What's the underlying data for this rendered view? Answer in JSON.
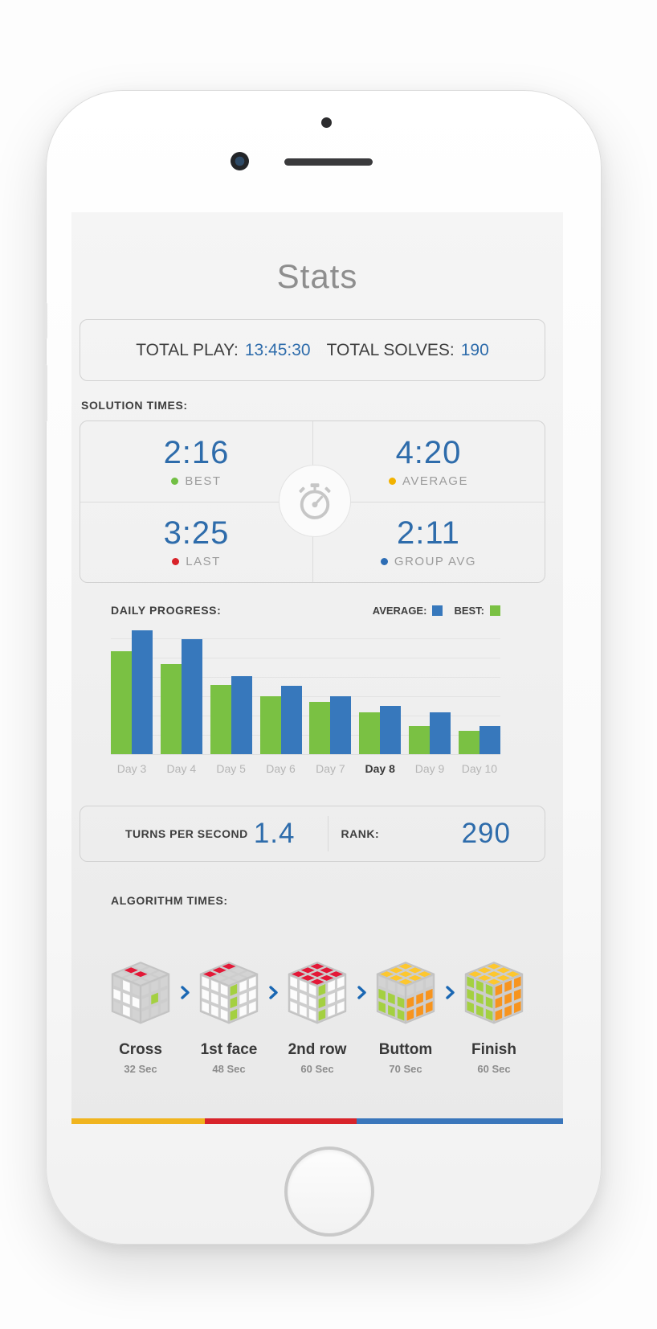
{
  "header": {
    "title": "Stats"
  },
  "totals": {
    "play_label": "TOTAL PLAY:",
    "play_value": "13:45:30",
    "solves_label": "TOTAL SOLVES:",
    "solves_value": "190"
  },
  "solution_times": {
    "section_label": "SOLUTION TIMES:",
    "center_icon": "stopwatch-icon",
    "cells": [
      {
        "value": "2:16",
        "label": "BEST",
        "dot_color": "#72bf44"
      },
      {
        "value": "4:20",
        "label": "AVERAGE",
        "dot_color": "#f2b200"
      },
      {
        "value": "3:25",
        "label": "LAST",
        "dot_color": "#d8232a"
      },
      {
        "value": "2:11",
        "label": "GROUP AVG",
        "dot_color": "#2d6db5"
      }
    ]
  },
  "chart_data": {
    "type": "bar",
    "title": "DAILY PROGRESS:",
    "categories": [
      "Day 3",
      "Day 4",
      "Day 5",
      "Day 6",
      "Day 7",
      "Day 8",
      "Day 9",
      "Day 10"
    ],
    "highlighted_category": "Day 8",
    "series": [
      {
        "name": "BEST",
        "color": "#7ac143",
        "values": [
          83,
          73,
          56,
          47,
          42,
          34,
          23,
          19
        ]
      },
      {
        "name": "AVERAGE",
        "color": "#3778bc",
        "values": [
          100,
          93,
          63,
          55,
          47,
          39,
          34,
          23
        ]
      }
    ],
    "legend": [
      {
        "label": "AVERAGE:",
        "color": "#3778bc"
      },
      {
        "label": "BEST:",
        "color": "#7ac143"
      }
    ],
    "legend_position": "top-right",
    "grid": true,
    "ylim": [
      0,
      100
    ],
    "y_axis_note": "no tick labels shown; values are relative bar heights, 100 = tallest bar"
  },
  "stats_bar": {
    "turns_label": "TURNS PER SECOND",
    "turns_value": "1.4",
    "rank_label": "RANK:",
    "rank_value": "290"
  },
  "algorithm_times": {
    "section_label": "ALGORITHM TIMES:",
    "arrow_icon": "chevron-right-icon",
    "arrow_color": "#1a67b3",
    "palette": {
      "G": "#d3d3d3",
      "W": "#fcfcfc",
      "R": "#e31837",
      "N": "#a4d041",
      "Y": "#fdc72f",
      "O": "#f7941e"
    },
    "steps": [
      {
        "name": "Cross",
        "time": "32 Sec",
        "faces": {
          "top": [
            "G",
            "R",
            "G",
            "G",
            "R",
            "G",
            "G",
            "G",
            "G"
          ],
          "front": [
            "G",
            "W",
            "G",
            "W",
            "W",
            "W",
            "G",
            "W",
            "G"
          ],
          "right": [
            "G",
            "G",
            "G",
            "G",
            "N",
            "G",
            "G",
            "G",
            "G"
          ]
        }
      },
      {
        "name": "1st face",
        "time": "48 Sec",
        "faces": {
          "top": [
            "R",
            "R",
            "R",
            "G",
            "G",
            "G",
            "G",
            "G",
            "G"
          ],
          "front": [
            "W",
            "W",
            "W",
            "W",
            "W",
            "W",
            "W",
            "W",
            "W"
          ],
          "right": [
            "N",
            "W",
            "W",
            "N",
            "W",
            "W",
            "N",
            "W",
            "W"
          ]
        }
      },
      {
        "name": "2nd row",
        "time": "60 Sec",
        "faces": {
          "top": [
            "R",
            "R",
            "R",
            "R",
            "R",
            "R",
            "R",
            "R",
            "R"
          ],
          "front": [
            "W",
            "W",
            "W",
            "W",
            "W",
            "W",
            "W",
            "W",
            "W"
          ],
          "right": [
            "N",
            "W",
            "W",
            "N",
            "W",
            "W",
            "N",
            "W",
            "W"
          ]
        }
      },
      {
        "name": "Buttom",
        "time": "70 Sec",
        "faces": {
          "top": [
            "Y",
            "Y",
            "Y",
            "Y",
            "Y",
            "Y",
            "Y",
            "Y",
            "Y"
          ],
          "front": [
            "G",
            "G",
            "G",
            "N",
            "N",
            "N",
            "N",
            "N",
            "N"
          ],
          "right": [
            "G",
            "G",
            "G",
            "O",
            "O",
            "O",
            "O",
            "O",
            "O"
          ]
        }
      },
      {
        "name": "Finish",
        "time": "60 Sec",
        "faces": {
          "top": [
            "Y",
            "Y",
            "Y",
            "Y",
            "Y",
            "Y",
            "Y",
            "Y",
            "Y"
          ],
          "front": [
            "N",
            "N",
            "N",
            "N",
            "N",
            "N",
            "N",
            "N",
            "N"
          ],
          "right": [
            "O",
            "O",
            "O",
            "O",
            "O",
            "O",
            "O",
            "O",
            "O"
          ]
        }
      }
    ]
  },
  "footer_stripe": {
    "segments": [
      {
        "color": "#f0b41e",
        "width_pct": 27.1
      },
      {
        "color": "#d8232a",
        "width_pct": 30.9
      },
      {
        "color": "#3a76bb",
        "width_pct": 42.0
      }
    ]
  },
  "icons": {
    "stopwatch_color": "#c6c6c6"
  }
}
